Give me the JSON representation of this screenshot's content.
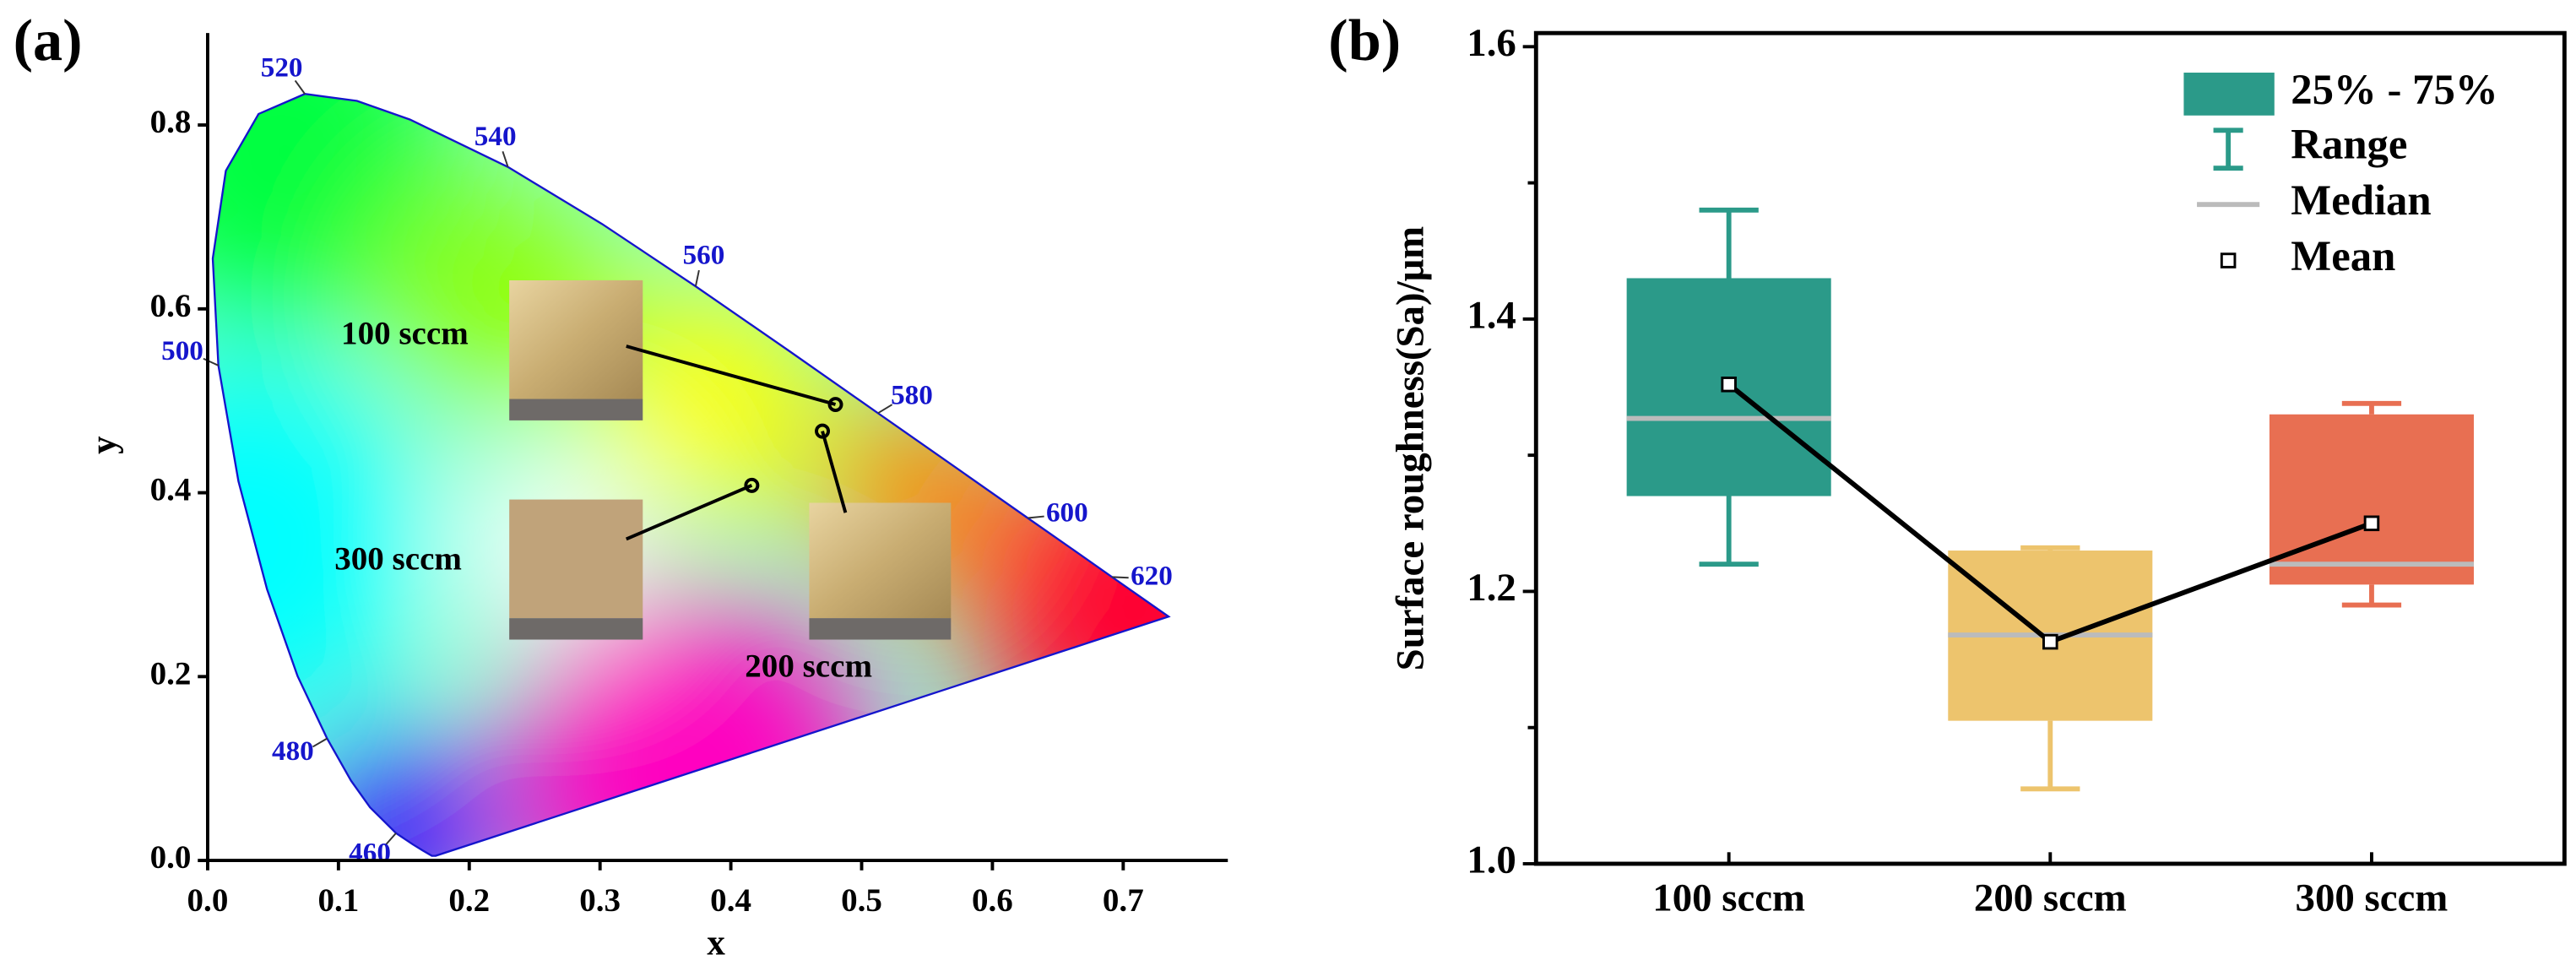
{
  "chart_data": [
    {
      "type": "scatter",
      "panel": "(a)",
      "xlabel": "x",
      "ylabel": "y",
      "xlim": [
        0,
        0.78
      ],
      "ylim": [
        0,
        0.9
      ],
      "xticks": [
        {
          "value": 0,
          "label": "0.0"
        },
        0.1,
        0.2,
        0.3,
        0.4,
        0.5,
        0.6,
        0.7
      ],
      "yticks": [
        {
          "value": 0,
          "label": "0.0"
        },
        0.2,
        0.4,
        0.6,
        0.8
      ],
      "x": [
        0.48,
        0.47,
        0.416
      ],
      "y": [
        0.496,
        0.467,
        0.408
      ],
      "labels": [
        "100 sccm",
        "200 sccm",
        "300 sccm"
      ],
      "locus": {
        "x": [
          0.1741,
          0.1714,
          0.1644,
          0.1566,
          0.144,
          0.1241,
          0.1096,
          0.0913,
          0.0687,
          0.0454,
          0.0235,
          0.0082,
          0.0039,
          0.0139,
          0.0389,
          0.0743,
          0.1142,
          0.1547,
          0.2296,
          0.3016,
          0.3731,
          0.4441,
          0.5125,
          0.5752,
          0.627,
          0.6658,
          0.6915,
          0.719,
          0.7347
        ],
        "y": [
          0.005,
          0.0051,
          0.0109,
          0.0177,
          0.0297,
          0.0578,
          0.0868,
          0.1327,
          0.2007,
          0.295,
          0.4127,
          0.5384,
          0.6548,
          0.7502,
          0.812,
          0.8338,
          0.8262,
          0.8059,
          0.7543,
          0.6923,
          0.6245,
          0.5547,
          0.4866,
          0.4242,
          0.3725,
          0.334,
          0.3083,
          0.2809,
          0.2653
        ],
        "labels": [
          null,
          null,
          null,
          null,
          460,
          null,
          null,
          480,
          null,
          null,
          null,
          500,
          null,
          null,
          null,
          520,
          null,
          null,
          540,
          null,
          560,
          null,
          580,
          null,
          600,
          null,
          620,
          null,
          null
        ]
      },
      "locus_color": "#1515cc"
    },
    {
      "type": "box",
      "panel": "(b)",
      "ylabel": "Surface roughness(Sa)/μm",
      "categories": [
        "100 sccm",
        "200 sccm",
        "300 sccm"
      ],
      "ylim": [
        1.0,
        1.61
      ],
      "yticks": [
        {
          "value": 1,
          "label": "1.0"
        },
        1.2,
        1.4,
        1.6
      ],
      "yminor": [
        1.1,
        1.3,
        1.5
      ],
      "colors": [
        "#2b9a89",
        "#edc46d",
        "#e86f52"
      ],
      "q1": [
        1.27,
        1.105,
        1.205
      ],
      "q3": [
        1.43,
        1.23,
        1.33
      ],
      "median": [
        1.327,
        1.168,
        1.22
      ],
      "mean": [
        1.352,
        1.163,
        1.25
      ],
      "min": [
        1.22,
        1.055,
        1.19
      ],
      "max": [
        1.48,
        1.232,
        1.338
      ],
      "median_color": "#bbbbbb",
      "legend": [
        "25% - 75%",
        "Range",
        "Median",
        "Mean"
      ]
    }
  ]
}
